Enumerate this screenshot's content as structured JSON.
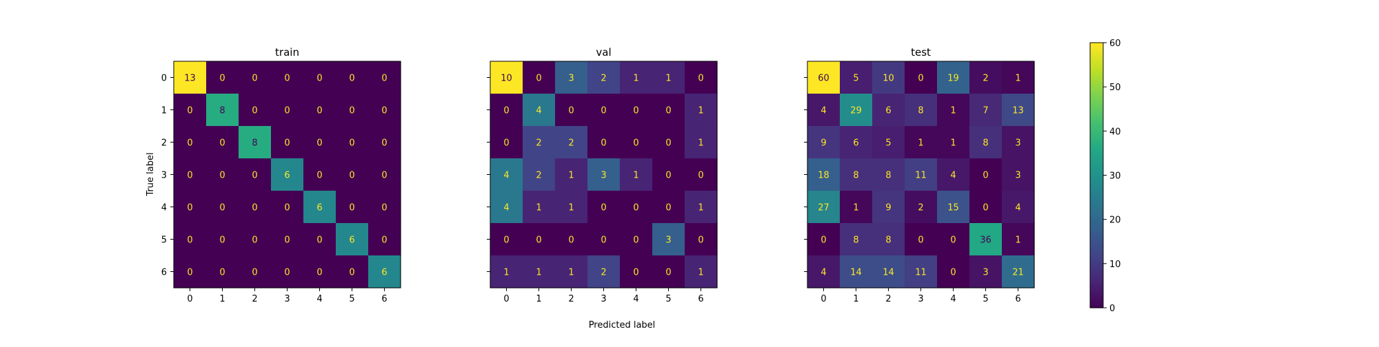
{
  "chart_data": {
    "type": "heatmap",
    "shared_xlabel": "Predicted label",
    "shared_ylabel": "True label",
    "class_labels": [
      "0",
      "1",
      "2",
      "3",
      "4",
      "5",
      "6"
    ],
    "colormap": "viridis",
    "colorbar": {
      "min": 0,
      "max": 60,
      "ticks": [
        0,
        10,
        20,
        30,
        40,
        50,
        60
      ]
    },
    "matrices": [
      {
        "title": "train",
        "values": [
          [
            13,
            0,
            0,
            0,
            0,
            0,
            0
          ],
          [
            0,
            8,
            0,
            0,
            0,
            0,
            0
          ],
          [
            0,
            0,
            8,
            0,
            0,
            0,
            0
          ],
          [
            0,
            0,
            0,
            6,
            0,
            0,
            0
          ],
          [
            0,
            0,
            0,
            0,
            6,
            0,
            0
          ],
          [
            0,
            0,
            0,
            0,
            0,
            6,
            0
          ],
          [
            0,
            0,
            0,
            0,
            0,
            0,
            6
          ]
        ]
      },
      {
        "title": "val",
        "values": [
          [
            10,
            0,
            3,
            2,
            1,
            1,
            0
          ],
          [
            0,
            4,
            0,
            0,
            0,
            0,
            1
          ],
          [
            0,
            2,
            2,
            0,
            0,
            0,
            1
          ],
          [
            4,
            2,
            1,
            3,
            1,
            0,
            0
          ],
          [
            4,
            1,
            1,
            0,
            0,
            0,
            1
          ],
          [
            0,
            0,
            0,
            0,
            0,
            3,
            0
          ],
          [
            1,
            1,
            1,
            2,
            0,
            0,
            1
          ]
        ]
      },
      {
        "title": "test",
        "values": [
          [
            60,
            5,
            10,
            0,
            19,
            2,
            1
          ],
          [
            4,
            29,
            6,
            8,
            1,
            7,
            13
          ],
          [
            9,
            6,
            5,
            1,
            1,
            8,
            3
          ],
          [
            18,
            8,
            8,
            11,
            4,
            0,
            3
          ],
          [
            27,
            1,
            9,
            2,
            15,
            0,
            4
          ],
          [
            0,
            8,
            8,
            0,
            0,
            36,
            1
          ],
          [
            4,
            14,
            14,
            11,
            0,
            3,
            21
          ]
        ]
      }
    ]
  }
}
